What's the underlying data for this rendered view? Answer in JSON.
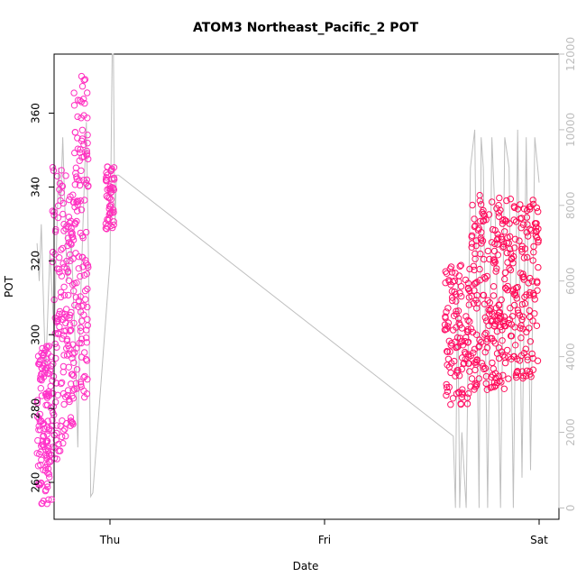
{
  "chart_data": {
    "type": "scatter",
    "title": "ATOM3 Northeast_Pacific_2 POT",
    "xlabel": "Date",
    "ylabel": "POT",
    "x_ticks": [
      "Thu",
      "Fri",
      "Sat"
    ],
    "x_range": [
      -0.18,
      1.02
    ],
    "ylim": [
      250,
      376
    ],
    "y_ticks": [
      260,
      280,
      300,
      320,
      340,
      360
    ],
    "y2lim": [
      -300,
      12000
    ],
    "y2_ticks": [
      0,
      2000,
      4000,
      6000,
      8000,
      10000,
      12000
    ],
    "grid": false,
    "colors": {
      "points_start": "#ff33cc",
      "points_end": "#ff0a50",
      "altitude_line": "#bfbfbf",
      "right_axis": "#bdbdbd"
    },
    "series": [
      {
        "role": "points",
        "segments": [
          {
            "x_start": -0.17,
            "x_end": -0.135,
            "y_min": 254,
            "y_max": 297,
            "density": 130
          },
          {
            "x_start": -0.135,
            "x_end": -0.1,
            "y_min": 266,
            "y_max": 346,
            "density": 110
          },
          {
            "x_start": -0.1,
            "x_end": -0.085,
            "y_min": 275,
            "y_max": 338,
            "density": 60
          },
          {
            "x_start": -0.085,
            "x_end": -0.05,
            "y_min": 283,
            "y_max": 373,
            "density": 130
          },
          {
            "x_start": -0.01,
            "x_end": 0.01,
            "y_min": 328,
            "y_max": 346,
            "density": 50
          },
          {
            "x_start": 0.78,
            "x_end": 0.84,
            "y_min": 281,
            "y_max": 320,
            "density": 120
          },
          {
            "x_start": 0.84,
            "x_end": 0.92,
            "y_min": 285,
            "y_max": 338,
            "density": 190
          },
          {
            "x_start": 0.92,
            "x_end": 1.0,
            "y_min": 288,
            "y_max": 337,
            "density": 160
          }
        ]
      },
      {
        "role": "altitude_line",
        "x": [
          -0.17,
          -0.165,
          -0.16,
          -0.15,
          -0.14,
          -0.13,
          -0.12,
          -0.115,
          -0.11,
          -0.1,
          -0.09,
          -0.08,
          -0.075,
          -0.07,
          -0.06,
          -0.055,
          -0.05,
          -0.045,
          -0.04,
          0.0,
          0.005,
          0.008,
          0.01,
          0.012,
          0.015,
          0.02,
          0.8,
          0.805,
          0.81,
          0.815,
          0.82,
          0.83,
          0.84,
          0.85,
          0.86,
          0.865,
          0.87,
          0.88,
          0.89,
          0.9,
          0.91,
          0.92,
          0.93,
          0.94,
          0.95,
          0.96,
          0.97,
          0.98,
          0.99,
          1.0,
          1.0
        ],
        "y": [
          7000,
          6000,
          7500,
          3500,
          6800,
          4500,
          9000,
          8000,
          9800,
          6000,
          7000,
          4000,
          1600,
          5000,
          8500,
          10200,
          6500,
          300,
          400,
          6500,
          12000,
          12000,
          9000,
          7500,
          8800,
          8800,
          1900,
          0,
          6000,
          0,
          2000,
          0,
          9000,
          10000,
          0,
          9800,
          9000,
          0,
          9800,
          7000,
          0,
          9800,
          9000,
          0,
          10000,
          800,
          9800,
          1000,
          9800,
          8600,
          8600
        ]
      }
    ]
  }
}
